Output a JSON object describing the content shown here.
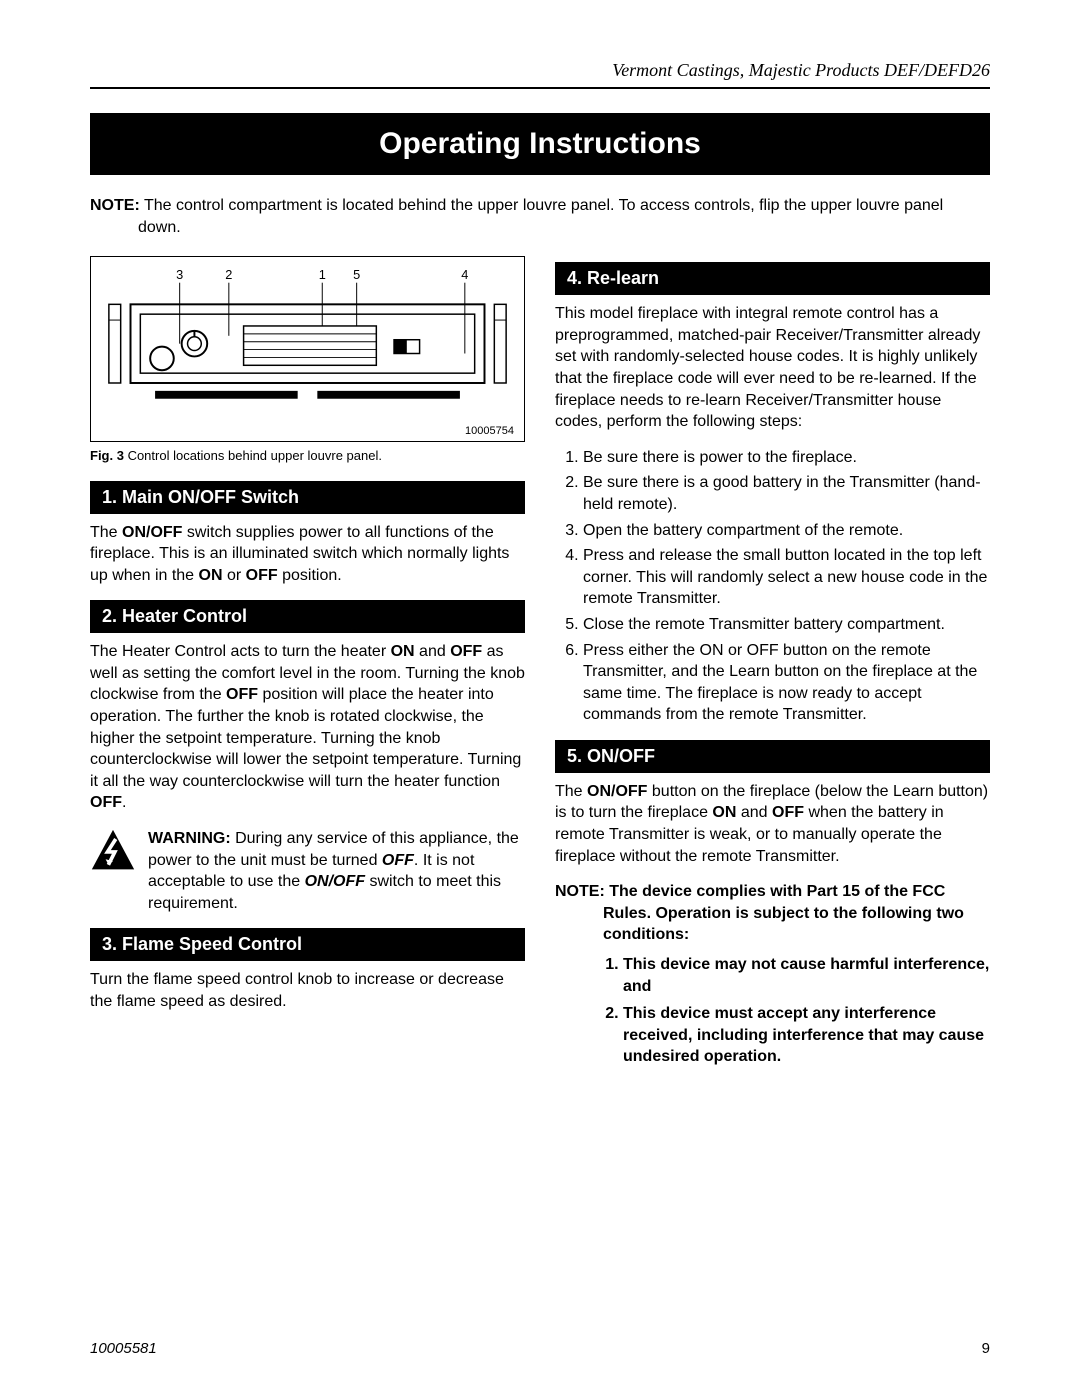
{
  "header": {
    "product_line": "Vermont Castings, Majestic Products DEF/DEFD26"
  },
  "title": "Operating Instructions",
  "note": {
    "label": "NOTE:",
    "text": " The control compartment is located behind the upper louvre panel. To access controls, flip the upper louvre panel down."
  },
  "figure": {
    "callouts": [
      "3",
      "2",
      "1",
      "5",
      "4"
    ],
    "id": "10005754",
    "caption_label": "Fig. 3",
    "caption_text": "   Control locations behind upper louvre panel."
  },
  "sections": {
    "s1": {
      "heading": "1. Main ON/OFF Switch",
      "html": "The <b>ON/OFF</b> switch supplies power to all functions of the fireplace. This is an illuminated switch which normally lights up when in the <b>ON</b> or <b>OFF</b> position."
    },
    "s2": {
      "heading": "2. Heater Control",
      "html": "The Heater Control acts to turn the heater <b>ON</b> and <b>OFF</b> as well as setting the comfort level in the room. Turning the knob clockwise from the <b>OFF</b> position will place the heater into operation. The further the knob is rotated clockwise, the higher the setpoint temperature. Turning the knob counterclockwise will lower the setpoint temperature. Turning it all the way counterclockwise will turn the heater function <b>OFF</b>."
    },
    "warning": {
      "html": "<b>WARNING:</b>  During any service of this appliance, the power to the unit must be turned <b><i>OFF</i></b>. It is not acceptable to use the <b><i>ON/OFF</i></b> switch to meet this requirement."
    },
    "s3": {
      "heading": "3. Flame Speed Control",
      "text": "Turn the flame speed control knob to increase or decrease the flame speed as desired."
    },
    "s4": {
      "heading": "4. Re-learn",
      "intro": "This model fireplace with integral remote control has a preprogrammed, matched-pair Receiver/Transmitter already set with randomly-selected house codes. It is highly unlikely that the fireplace code will ever need to be re-learned. If the fireplace needs to re-learn Receiver/Transmitter house codes, perform the following steps:",
      "steps": [
        "Be sure there is power to the fireplace.",
        "Be sure there is a good battery in the Transmitter (hand-held remote).",
        "Open the battery compartment of the remote.",
        "Press and release the small button located in the top left corner. This will randomly select a new house code in the remote Transmitter.",
        "Close the remote Transmitter battery compartment.",
        "Press either the ON or OFF button on the remote Transmitter, and the Learn button on the fireplace at the same time. The fireplace is now ready to accept commands from the remote Transmitter."
      ]
    },
    "s5": {
      "heading": "5. ON/OFF",
      "html": "The <b>ON/OFF</b> button on the fireplace (below the Learn button) is to turn the fireplace <b>ON</b> and <b>OFF</b> when the battery in remote Transmitter is weak, or to manually operate the fireplace without the remote Transmitter."
    },
    "fcc": {
      "note_label": "NOTE:",
      "note_text": "The device complies with Part 15 of the FCC Rules. Operation is subject to the following two conditions:",
      "items": [
        "This device may not cause harmful interference, and",
        "This device must accept any interference received, including interference that may cause undesired operation."
      ]
    }
  },
  "footer": {
    "docnum": "10005581",
    "page": "9"
  },
  "colors": {
    "black": "#000000",
    "white": "#ffffff"
  }
}
